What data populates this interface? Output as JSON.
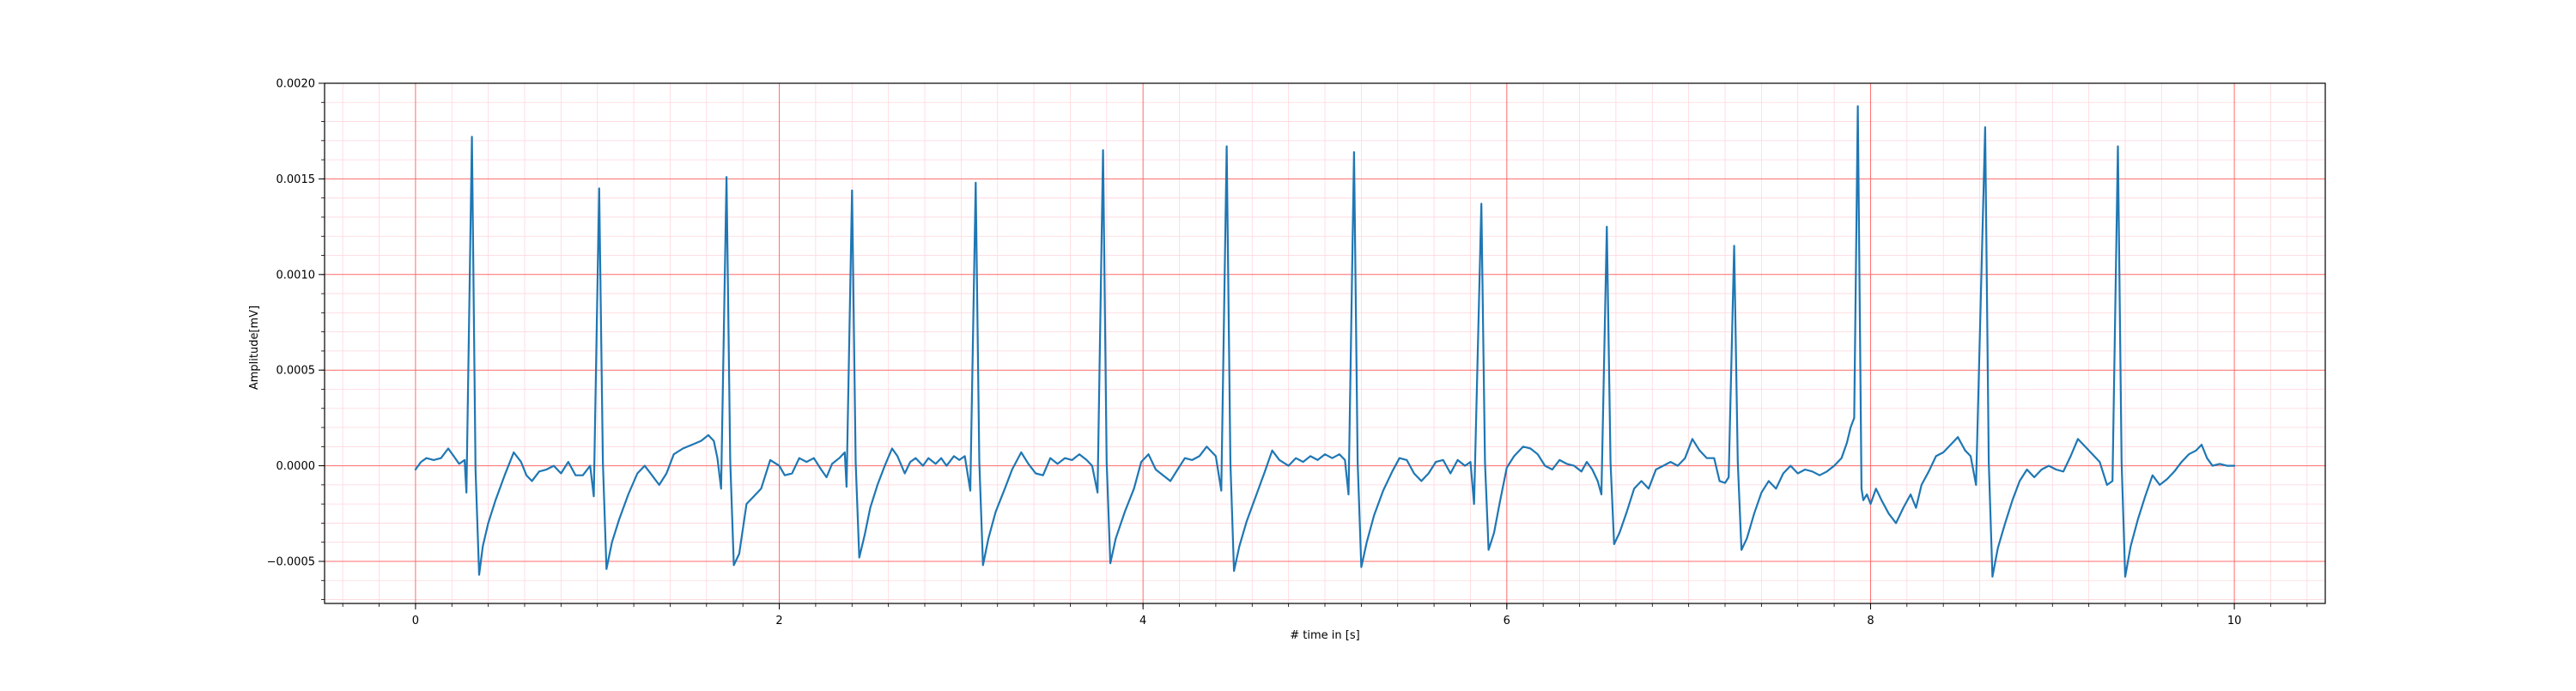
{
  "chart_data": {
    "type": "line",
    "title": "",
    "xlabel": "# time in [s]",
    "ylabel": "Amplitude[mV]",
    "xlim": [
      -0.5,
      10.5
    ],
    "ylim": [
      -0.00072,
      0.002
    ],
    "x_ticks": [
      0,
      2,
      4,
      6,
      8,
      10
    ],
    "x_tick_labels": [
      "0",
      "2",
      "4",
      "6",
      "8",
      "10"
    ],
    "y_ticks": [
      -0.0005,
      0,
      0.0005,
      0.001,
      0.0015,
      0.002
    ],
    "y_tick_labels": [
      "−0.0005",
      "0.0000",
      "0.0005",
      "0.0010",
      "0.0015",
      "0.0020"
    ],
    "grid": "major and minor",
    "colors": {
      "line": "#1f77b4",
      "major_grid": "#ff6b6b",
      "minor_grid": "#ffd6dc"
    },
    "series": [
      {
        "points": [
          [
            0.0,
            -2e-05
          ],
          [
            0.03,
            2e-05
          ],
          [
            0.06,
            4e-05
          ],
          [
            0.1,
            3e-05
          ],
          [
            0.14,
            4e-05
          ],
          [
            0.18,
            9e-05
          ],
          [
            0.21,
            5e-05
          ],
          [
            0.24,
            1e-05
          ],
          [
            0.27,
            3e-05
          ],
          [
            0.28,
            -0.00014
          ],
          [
            0.31,
            0.00172
          ],
          [
            0.33,
            -2e-05
          ],
          [
            0.35,
            -0.00057
          ],
          [
            0.37,
            -0.00042
          ],
          [
            0.4,
            -0.0003
          ],
          [
            0.44,
            -0.00018
          ],
          [
            0.49,
            -5e-05
          ],
          [
            0.54,
            7e-05
          ],
          [
            0.58,
            2e-05
          ],
          [
            0.61,
            -5e-05
          ],
          [
            0.64,
            -8e-05
          ],
          [
            0.68,
            -3e-05
          ],
          [
            0.72,
            -2e-05
          ],
          [
            0.76,
            0.0
          ],
          [
            0.8,
            -4e-05
          ],
          [
            0.84,
            2e-05
          ],
          [
            0.88,
            -5e-05
          ],
          [
            0.92,
            -5e-05
          ],
          [
            0.96,
            0.0
          ],
          [
            0.98,
            -0.00016
          ],
          [
            1.01,
            0.00145
          ],
          [
            1.03,
            2e-05
          ],
          [
            1.05,
            -0.00054
          ],
          [
            1.08,
            -0.0004
          ],
          [
            1.12,
            -0.00028
          ],
          [
            1.17,
            -0.00015
          ],
          [
            1.22,
            -4e-05
          ],
          [
            1.26,
            0.0
          ],
          [
            1.3,
            -5e-05
          ],
          [
            1.34,
            -0.0001
          ],
          [
            1.38,
            -4e-05
          ],
          [
            1.42,
            6e-05
          ],
          [
            1.47,
            9e-05
          ],
          [
            1.52,
            0.00011
          ],
          [
            1.57,
            0.00013
          ],
          [
            1.61,
            0.00016
          ],
          [
            1.64,
            0.00013
          ],
          [
            1.66,
            4e-05
          ],
          [
            1.68,
            -0.00012
          ],
          [
            1.71,
            0.00151
          ],
          [
            1.73,
            3e-05
          ],
          [
            1.75,
            -0.00052
          ],
          [
            1.78,
            -0.00046
          ],
          [
            1.82,
            -0.0002
          ],
          [
            1.86,
            -0.00016
          ],
          [
            1.9,
            -0.00012
          ],
          [
            1.95,
            3e-05
          ],
          [
            2.0,
            0.0
          ],
          [
            2.03,
            -5e-05
          ],
          [
            2.07,
            -4e-05
          ],
          [
            2.11,
            4e-05
          ],
          [
            2.15,
            2e-05
          ],
          [
            2.19,
            4e-05
          ],
          [
            2.23,
            -2e-05
          ],
          [
            2.26,
            -6e-05
          ],
          [
            2.29,
            1e-05
          ],
          [
            2.33,
            4e-05
          ],
          [
            2.36,
            7e-05
          ],
          [
            2.37,
            -0.00011
          ],
          [
            2.4,
            0.00144
          ],
          [
            2.42,
            2e-05
          ],
          [
            2.44,
            -0.00048
          ],
          [
            2.47,
            -0.00036
          ],
          [
            2.5,
            -0.00022
          ],
          [
            2.54,
            -0.0001
          ],
          [
            2.58,
            0.0
          ],
          [
            2.62,
            9e-05
          ],
          [
            2.65,
            5e-05
          ],
          [
            2.69,
            -4e-05
          ],
          [
            2.72,
            2e-05
          ],
          [
            2.75,
            4e-05
          ],
          [
            2.79,
            0.0
          ],
          [
            2.82,
            4e-05
          ],
          [
            2.86,
            1e-05
          ],
          [
            2.89,
            4e-05
          ],
          [
            2.92,
            0.0
          ],
          [
            2.96,
            5e-05
          ],
          [
            2.99,
            3e-05
          ],
          [
            3.02,
            5e-05
          ],
          [
            3.05,
            -0.00013
          ],
          [
            3.08,
            0.00148
          ],
          [
            3.1,
            2e-05
          ],
          [
            3.12,
            -0.00052
          ],
          [
            3.15,
            -0.00038
          ],
          [
            3.19,
            -0.00024
          ],
          [
            3.24,
            -0.00012
          ],
          [
            3.28,
            -2e-05
          ],
          [
            3.33,
            7e-05
          ],
          [
            3.37,
            1e-05
          ],
          [
            3.41,
            -4e-05
          ],
          [
            3.45,
            -5e-05
          ],
          [
            3.49,
            4e-05
          ],
          [
            3.53,
            1e-05
          ],
          [
            3.57,
            4e-05
          ],
          [
            3.61,
            3e-05
          ],
          [
            3.65,
            6e-05
          ],
          [
            3.69,
            3e-05
          ],
          [
            3.72,
            0.0
          ],
          [
            3.75,
            -0.00014
          ],
          [
            3.78,
            0.00165
          ],
          [
            3.8,
            2e-05
          ],
          [
            3.82,
            -0.00051
          ],
          [
            3.85,
            -0.00038
          ],
          [
            3.9,
            -0.00024
          ],
          [
            3.95,
            -0.00012
          ],
          [
            3.99,
            2e-05
          ],
          [
            4.03,
            6e-05
          ],
          [
            4.07,
            -2e-05
          ],
          [
            4.11,
            -5e-05
          ],
          [
            4.15,
            -8e-05
          ],
          [
            4.19,
            -2e-05
          ],
          [
            4.23,
            4e-05
          ],
          [
            4.27,
            3e-05
          ],
          [
            4.31,
            5e-05
          ],
          [
            4.35,
            0.0001
          ],
          [
            4.38,
            7e-05
          ],
          [
            4.4,
            5e-05
          ],
          [
            4.43,
            -0.00013
          ],
          [
            4.46,
            0.00167
          ],
          [
            4.48,
            2e-05
          ],
          [
            4.5,
            -0.00055
          ],
          [
            4.53,
            -0.00042
          ],
          [
            4.57,
            -0.00029
          ],
          [
            4.62,
            -0.00016
          ],
          [
            4.67,
            -3e-05
          ],
          [
            4.71,
            8e-05
          ],
          [
            4.75,
            3e-05
          ],
          [
            4.8,
            0.0
          ],
          [
            4.84,
            4e-05
          ],
          [
            4.88,
            2e-05
          ],
          [
            4.92,
            5e-05
          ],
          [
            4.96,
            3e-05
          ],
          [
            5.0,
            6e-05
          ],
          [
            5.04,
            4e-05
          ],
          [
            5.08,
            6e-05
          ],
          [
            5.11,
            3e-05
          ],
          [
            5.13,
            -0.00015
          ],
          [
            5.16,
            0.00164
          ],
          [
            5.18,
            2e-05
          ],
          [
            5.2,
            -0.00053
          ],
          [
            5.23,
            -0.0004
          ],
          [
            5.27,
            -0.00026
          ],
          [
            5.32,
            -0.00013
          ],
          [
            5.37,
            -3e-05
          ],
          [
            5.41,
            4e-05
          ],
          [
            5.45,
            3e-05
          ],
          [
            5.49,
            -4e-05
          ],
          [
            5.53,
            -8e-05
          ],
          [
            5.57,
            -4e-05
          ],
          [
            5.61,
            2e-05
          ],
          [
            5.65,
            3e-05
          ],
          [
            5.69,
            -4e-05
          ],
          [
            5.73,
            3e-05
          ],
          [
            5.77,
            0.0
          ],
          [
            5.8,
            2e-05
          ],
          [
            5.82,
            -0.0002
          ],
          [
            5.86,
            0.00137
          ],
          [
            5.88,
            2e-05
          ],
          [
            5.9,
            -0.00044
          ],
          [
            5.93,
            -0.00035
          ],
          [
            5.96,
            -0.0002
          ],
          [
            6.0,
            -1e-05
          ],
          [
            6.04,
            5e-05
          ],
          [
            6.09,
            0.0001
          ],
          [
            6.13,
            9e-05
          ],
          [
            6.17,
            6e-05
          ],
          [
            6.21,
            0.0
          ],
          [
            6.25,
            -2e-05
          ],
          [
            6.29,
            3e-05
          ],
          [
            6.33,
            1e-05
          ],
          [
            6.37,
            0.0
          ],
          [
            6.41,
            -3e-05
          ],
          [
            6.44,
            2e-05
          ],
          [
            6.47,
            -2e-05
          ],
          [
            6.5,
            -8e-05
          ],
          [
            6.52,
            -0.00015
          ],
          [
            6.55,
            0.00125
          ],
          [
            6.57,
            2e-05
          ],
          [
            6.59,
            -0.00041
          ],
          [
            6.62,
            -0.00035
          ],
          [
            6.66,
            -0.00024
          ],
          [
            6.7,
            -0.00012
          ],
          [
            6.74,
            -8e-05
          ],
          [
            6.78,
            -0.00012
          ],
          [
            6.82,
            -2e-05
          ],
          [
            6.86,
            0.0
          ],
          [
            6.9,
            2e-05
          ],
          [
            6.94,
            0.0
          ],
          [
            6.98,
            4e-05
          ],
          [
            7.02,
            0.00014
          ],
          [
            7.06,
            8e-05
          ],
          [
            7.1,
            4e-05
          ],
          [
            7.14,
            4e-05
          ],
          [
            7.17,
            -8e-05
          ],
          [
            7.2,
            -9e-05
          ],
          [
            7.22,
            -6e-05
          ],
          [
            7.25,
            0.00115
          ],
          [
            7.27,
            2e-05
          ],
          [
            7.29,
            -0.00044
          ],
          [
            7.32,
            -0.00038
          ],
          [
            7.36,
            -0.00025
          ],
          [
            7.4,
            -0.00014
          ],
          [
            7.44,
            -8e-05
          ],
          [
            7.48,
            -0.00012
          ],
          [
            7.52,
            -4e-05
          ],
          [
            7.56,
            0.0
          ],
          [
            7.6,
            -4e-05
          ],
          [
            7.64,
            -2e-05
          ],
          [
            7.68,
            -3e-05
          ],
          [
            7.72,
            -5e-05
          ],
          [
            7.76,
            -3e-05
          ],
          [
            7.8,
            0.0
          ],
          [
            7.84,
            4e-05
          ],
          [
            7.87,
            0.00012
          ],
          [
            7.89,
            0.0002
          ],
          [
            7.91,
            0.00025
          ],
          [
            7.93,
            0.00188
          ],
          [
            7.95,
            -0.00012
          ],
          [
            7.96,
            -0.00018
          ],
          [
            7.98,
            -0.00015
          ],
          [
            8.0,
            -0.0002
          ],
          [
            8.03,
            -0.00012
          ],
          [
            8.06,
            -0.00018
          ],
          [
            8.1,
            -0.00025
          ],
          [
            8.14,
            -0.0003
          ],
          [
            8.18,
            -0.00022
          ],
          [
            8.22,
            -0.00015
          ],
          [
            8.25,
            -0.00022
          ],
          [
            8.28,
            -0.0001
          ],
          [
            8.32,
            -3e-05
          ],
          [
            8.36,
            5e-05
          ],
          [
            8.4,
            7e-05
          ],
          [
            8.44,
            0.00011
          ],
          [
            8.48,
            0.00015
          ],
          [
            8.52,
            8e-05
          ],
          [
            8.55,
            5e-05
          ],
          [
            8.58,
            -0.0001
          ],
          [
            8.63,
            0.00177
          ],
          [
            8.65,
            2e-05
          ],
          [
            8.67,
            -0.00058
          ],
          [
            8.7,
            -0.00043
          ],
          [
            8.74,
            -0.0003
          ],
          [
            8.78,
            -0.00018
          ],
          [
            8.82,
            -8e-05
          ],
          [
            8.86,
            -2e-05
          ],
          [
            8.9,
            -6e-05
          ],
          [
            8.94,
            -2e-05
          ],
          [
            8.98,
            0.0
          ],
          [
            9.02,
            -2e-05
          ],
          [
            9.06,
            -3e-05
          ],
          [
            9.1,
            5e-05
          ],
          [
            9.14,
            0.00014
          ],
          [
            9.18,
            0.0001
          ],
          [
            9.22,
            6e-05
          ],
          [
            9.26,
            2e-05
          ],
          [
            9.3,
            -0.0001
          ],
          [
            9.33,
            -8e-05
          ],
          [
            9.36,
            0.00167
          ],
          [
            9.38,
            2e-05
          ],
          [
            9.4,
            -0.00058
          ],
          [
            9.43,
            -0.00042
          ],
          [
            9.47,
            -0.00028
          ],
          [
            9.51,
            -0.00016
          ],
          [
            9.55,
            -5e-05
          ],
          [
            9.59,
            -0.0001
          ],
          [
            9.63,
            -7e-05
          ],
          [
            9.67,
            -3e-05
          ],
          [
            9.71,
            2e-05
          ],
          [
            9.75,
            6e-05
          ],
          [
            9.79,
            8e-05
          ],
          [
            9.82,
            0.00011
          ],
          [
            9.85,
            4e-05
          ],
          [
            9.88,
            0.0
          ],
          [
            9.92,
            1e-05
          ],
          [
            9.96,
            0.0
          ],
          [
            10.0,
            0.0
          ]
        ]
      }
    ]
  }
}
